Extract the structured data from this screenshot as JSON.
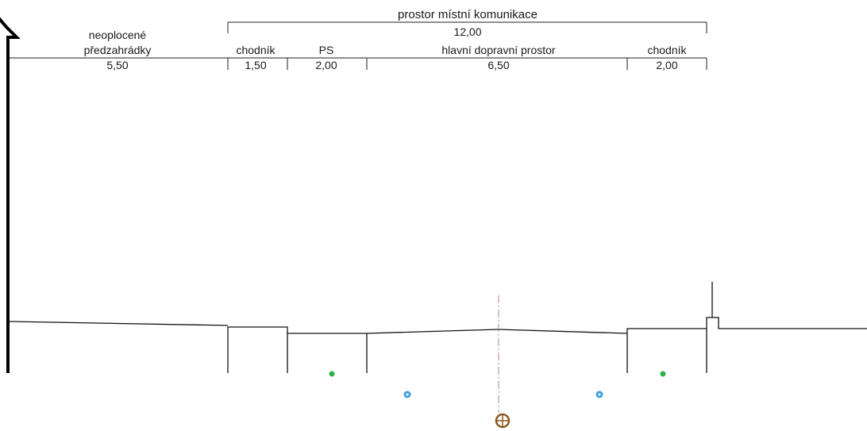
{
  "header": {
    "title": "prostor místní komunikace",
    "total": "12,00"
  },
  "zones": [
    {
      "name": "neoplocené",
      "name2": "předzahrádky",
      "value": "5,50"
    },
    {
      "name": "chodník",
      "value": "1,50"
    },
    {
      "name": "PS",
      "value": "2,00"
    },
    {
      "name": "hlavní dopravní prostor",
      "value": "6,50"
    },
    {
      "name": "chodník",
      "value": "2,00"
    }
  ],
  "colors": {
    "green_node": "#2bb34a",
    "blue_node": "#3ea0dc",
    "manhole": "#8a5a1c",
    "axis": "#b08a8a"
  }
}
